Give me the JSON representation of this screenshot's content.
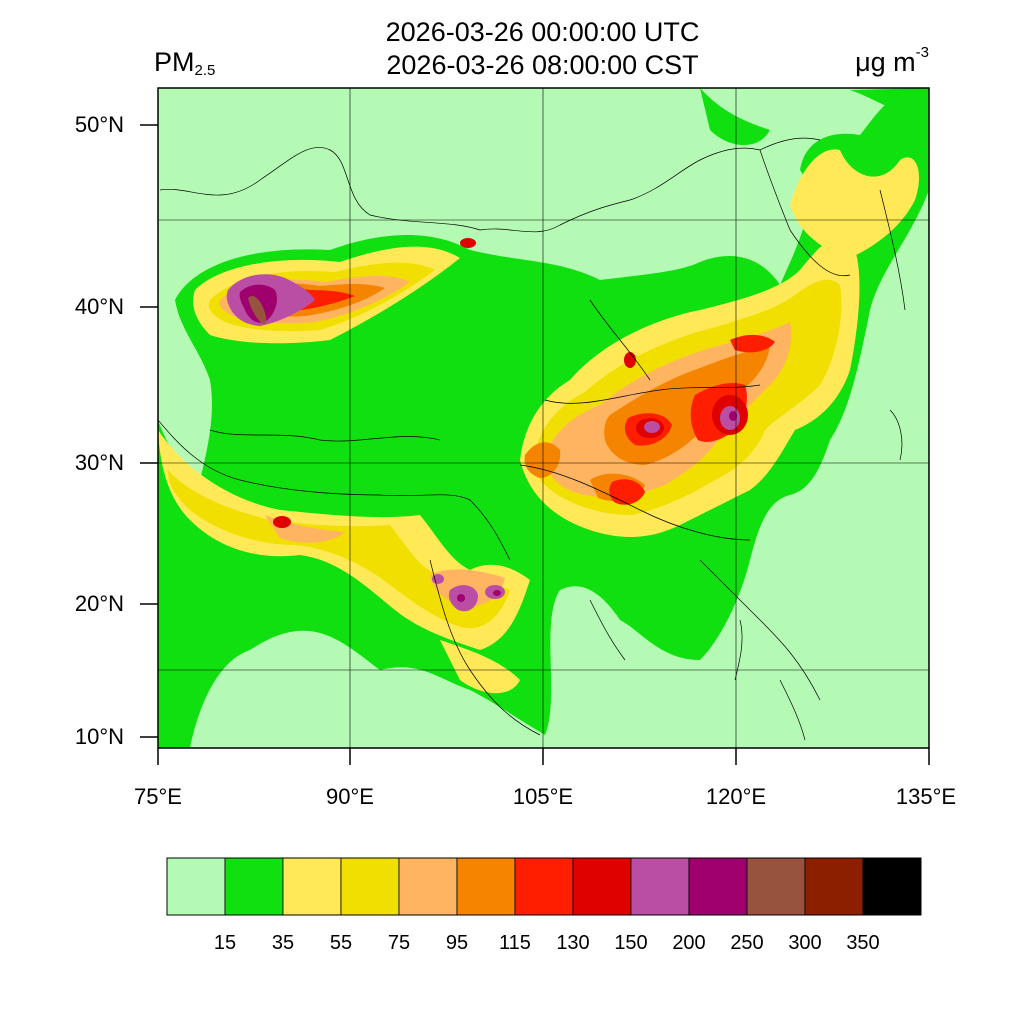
{
  "header": {
    "title_utc": "2026-03-26 00:00:00 UTC",
    "title_cst": "2026-03-26 08:00:00 CST",
    "variable_main": "PM",
    "variable_sub": "2.5",
    "unit_main": "μg m",
    "unit_sup": "-3"
  },
  "axes": {
    "lon_labels": [
      "75°E",
      "90°E",
      "105°E",
      "120°E",
      "135°E"
    ],
    "lat_labels": [
      "50°N",
      "40°N",
      "30°N",
      "20°N",
      "10°N"
    ],
    "lon_values": [
      75,
      90,
      105,
      120,
      135
    ],
    "lat_values": [
      50,
      40,
      30,
      20,
      10
    ]
  },
  "colorbar": {
    "colors": [
      "#b4fab4",
      "#10e010",
      "#ffe957",
      "#f0df00",
      "#ffb462",
      "#f58500",
      "#ff1e00",
      "#df0000",
      "#ba4ea4",
      "#a0006e",
      "#97533d",
      "#8b1f00",
      "#000000"
    ],
    "tick_labels": [
      "15",
      "35",
      "55",
      "75",
      "95",
      "115",
      "130",
      "150",
      "200",
      "250",
      "300",
      "350"
    ]
  },
  "chart_data": {
    "type": "heatmap",
    "title": "2026-03-26 00:00:00 UTC / 2026-03-26 08:00:00 CST",
    "variable": "PM2.5",
    "units": "μg m-3",
    "xlim": [
      75,
      135
    ],
    "ylim": [
      9,
      52
    ],
    "levels": [
      15,
      35,
      55,
      75,
      95,
      115,
      130,
      150,
      200,
      250,
      300,
      350
    ],
    "hotspots": [
      {
        "lon": 81,
        "lat": 40.5,
        "category": "200-250"
      },
      {
        "lon": 118,
        "lat": 33,
        "category": "200-250"
      },
      {
        "lon": 113,
        "lat": 32,
        "category": "200-250"
      },
      {
        "lon": 99.5,
        "lat": 21,
        "category": "200-250"
      },
      {
        "lon": 112,
        "lat": 28,
        "category": "130-150"
      },
      {
        "lon": 109,
        "lat": 30,
        "category": "115-130"
      },
      {
        "lon": 105,
        "lat": 30,
        "category": "95-115"
      },
      {
        "lon": 87,
        "lat": 26,
        "category": "130-150"
      }
    ]
  }
}
